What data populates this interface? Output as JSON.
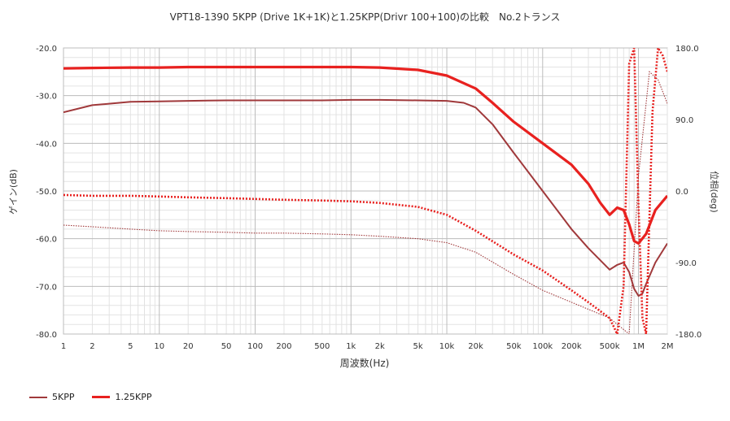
{
  "title": "VPT18-1390 5KPP (Drive 1K+1K)と1.25KPP(Drivr 100+100)の比較　No.2トランス",
  "chart_data": {
    "type": "line",
    "title": "VPT18-1390 5KPP (Drive 1K+1K)と1.25KPP(Drivr 100+100)の比較　No.2トランス",
    "xlabel": "周波数(Hz)",
    "ylabel": "ゲイン(dB)",
    "y2label": "位相(deg)",
    "x_scale": "log",
    "xlim": [
      1,
      2000000
    ],
    "ylim": [
      -80,
      -20
    ],
    "y2lim": [
      -180,
      180
    ],
    "grid": true,
    "legend_position": "bottom-left",
    "x_ticks": [
      {
        "v": 1,
        "label": "1"
      },
      {
        "v": 2,
        "label": "2"
      },
      {
        "v": 5,
        "label": "5"
      },
      {
        "v": 10,
        "label": "10"
      },
      {
        "v": 20,
        "label": "20"
      },
      {
        "v": 50,
        "label": "50"
      },
      {
        "v": 100,
        "label": "100"
      },
      {
        "v": 200,
        "label": "200"
      },
      {
        "v": 500,
        "label": "500"
      },
      {
        "v": 1000,
        "label": "1k"
      },
      {
        "v": 2000,
        "label": "2k"
      },
      {
        "v": 5000,
        "label": "5k"
      },
      {
        "v": 10000,
        "label": "10k"
      },
      {
        "v": 20000,
        "label": "20k"
      },
      {
        "v": 50000,
        "label": "50k"
      },
      {
        "v": 100000,
        "label": "100k"
      },
      {
        "v": 200000,
        "label": "200k"
      },
      {
        "v": 500000,
        "label": "500k"
      },
      {
        "v": 1000000,
        "label": "1M"
      },
      {
        "v": 2000000,
        "label": "2M"
      }
    ],
    "y_ticks": [
      "-20.0",
      "-30.0",
      "-40.0",
      "-50.0",
      "-60.0",
      "-70.0",
      "-80.0"
    ],
    "y_tick_values": [
      -20,
      -30,
      -40,
      -50,
      -60,
      -70,
      -80
    ],
    "y2_ticks": [
      "180.0",
      "90.0",
      "0.0",
      "-90.0",
      "-180.0"
    ],
    "y2_tick_values": [
      180,
      90,
      0,
      -90,
      -180
    ],
    "series": [
      {
        "name": "5KPP",
        "color": "#a0393b",
        "gain": {
          "x": [
            1,
            2,
            5,
            10,
            20,
            50,
            100,
            200,
            500,
            1000,
            2000,
            5000,
            10000,
            15000,
            20000,
            30000,
            50000,
            100000,
            200000,
            300000,
            500000,
            600000,
            700000,
            800000,
            900000,
            1000000,
            1100000,
            1200000,
            1500000,
            2000000
          ],
          "y": [
            -33.5,
            -32.0,
            -31.3,
            -31.2,
            -31.1,
            -31.0,
            -31.0,
            -31.0,
            -31.0,
            -30.9,
            -30.9,
            -31.0,
            -31.1,
            -31.5,
            -32.5,
            -36.0,
            -42.0,
            -50.0,
            -58.0,
            -62.0,
            -66.5,
            -65.5,
            -65.0,
            -67.0,
            -70.5,
            -72.0,
            -71.5,
            -69.5,
            -65.0,
            -61.0
          ]
        },
        "phase": {
          "x": [
            1,
            2,
            5,
            10,
            20,
            50,
            100,
            200,
            500,
            1000,
            2000,
            5000,
            10000,
            20000,
            50000,
            100000,
            200000,
            500000,
            800000,
            1000000,
            1300000,
            1600000,
            2000000
          ],
          "y": [
            -43,
            -45,
            -48,
            -50,
            -51,
            -52,
            -53,
            -53,
            -54,
            -55,
            -57,
            -60,
            -65,
            -77,
            -105,
            -125,
            -140,
            -160,
            -180,
            20,
            150,
            140,
            110
          ]
        }
      },
      {
        "name": "1.25KPP",
        "color": "#e8211f",
        "gain": {
          "x": [
            1,
            2,
            5,
            10,
            20,
            50,
            100,
            200,
            500,
            1000,
            2000,
            5000,
            10000,
            20000,
            30000,
            50000,
            100000,
            200000,
            300000,
            400000,
            500000,
            600000,
            700000,
            800000,
            900000,
            1000000,
            1200000,
            1500000,
            2000000
          ],
          "y": [
            -24.3,
            -24.2,
            -24.1,
            -24.1,
            -24.0,
            -24.0,
            -24.0,
            -24.0,
            -24.0,
            -24.0,
            -24.1,
            -24.6,
            -25.8,
            -28.5,
            -31.5,
            -35.5,
            -40.0,
            -44.5,
            -48.5,
            -52.5,
            -55.0,
            -53.5,
            -54.0,
            -57.0,
            -60.5,
            -61.0,
            -59.0,
            -54.0,
            -51.0
          ]
        },
        "phase": {
          "x": [
            1,
            2,
            5,
            10,
            20,
            50,
            100,
            200,
            500,
            1000,
            2000,
            5000,
            10000,
            20000,
            50000,
            100000,
            200000,
            300000,
            500000,
            600000,
            700000,
            800000,
            900000,
            1000000,
            1100000,
            1200000,
            1400000,
            1600000,
            1800000,
            2000000
          ],
          "y": [
            -5,
            -6,
            -6,
            -7,
            -8,
            -9,
            -10,
            -11,
            -12,
            -13,
            -15,
            -20,
            -30,
            -50,
            -80,
            -100,
            -125,
            -140,
            -160,
            -180,
            -120,
            160,
            180,
            -20,
            -160,
            -180,
            100,
            180,
            170,
            150
          ]
        }
      }
    ]
  }
}
